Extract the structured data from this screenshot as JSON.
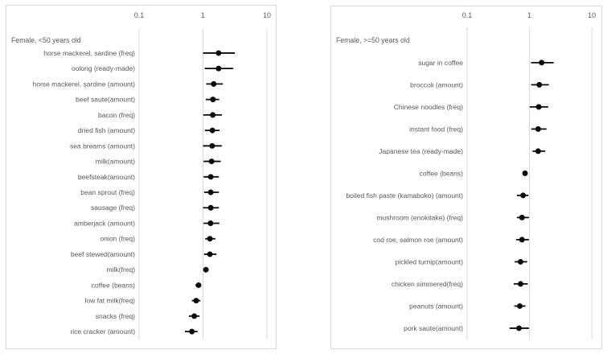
{
  "figure": {
    "background_color": "#ffffff",
    "border_color": "#d9d9d9",
    "gridline_color": "#d9d9d9",
    "text_color": "#595959",
    "marker_color": "#0a0a0a"
  },
  "chart_data": [
    {
      "type": "scatter",
      "subtype": "forest-plot",
      "title": "Female, <50 years old",
      "xscale": "log",
      "xticks": [
        "0.1",
        "1",
        "10"
      ],
      "xtick_values": [
        0.1,
        1,
        10
      ],
      "xlim": [
        0.05,
        14
      ],
      "grid": true,
      "rows": [
        {
          "label": "horse mackerel, sardine (freq)",
          "or": 1.75,
          "lo": 1.0,
          "hi": 3.15
        },
        {
          "label": "oolong (ready-made)",
          "or": 1.75,
          "lo": 1.06,
          "hi": 2.98
        },
        {
          "label": "horse mackerel, sardine (amount)",
          "or": 1.47,
          "lo": 1.12,
          "hi": 2.04
        },
        {
          "label": "beef saute(amount)",
          "or": 1.43,
          "lo": 1.1,
          "hi": 1.79
        },
        {
          "label": "bacon (freq)",
          "or": 1.42,
          "lo": 1.01,
          "hi": 1.97
        },
        {
          "label": "dried fish (amount)",
          "or": 1.4,
          "lo": 1.07,
          "hi": 1.81
        },
        {
          "label": "sea breams (amount)",
          "or": 1.39,
          "lo": 1.0,
          "hi": 1.96
        },
        {
          "label": "milk(amount)",
          "or": 1.36,
          "lo": 1.02,
          "hi": 1.89
        },
        {
          "label": "beefsteak(amount)",
          "or": 1.32,
          "lo": 1.02,
          "hi": 1.77
        },
        {
          "label": "bean sprout (freq)",
          "or": 1.32,
          "lo": 1.04,
          "hi": 1.77
        },
        {
          "label": "sausage (freq)",
          "or": 1.32,
          "lo": 1.0,
          "hi": 1.77
        },
        {
          "label": "amberjack (amount)",
          "or": 1.31,
          "lo": 1.02,
          "hi": 1.8
        },
        {
          "label": "onion (freq)",
          "or": 1.28,
          "lo": 1.08,
          "hi": 1.56
        },
        {
          "label": "beef stewed(amount)",
          "or": 1.28,
          "lo": 1.04,
          "hi": 1.62
        },
        {
          "label": "milk(freq)",
          "or": 1.11,
          "lo": 1.03,
          "hi": 1.21
        },
        {
          "label": "coffee (beans)",
          "or": 0.85,
          "lo": 0.76,
          "hi": 0.94
        },
        {
          "label": "low fat milk(freq)",
          "or": 0.78,
          "lo": 0.67,
          "hi": 0.91
        },
        {
          "label": "snacks (freq)",
          "or": 0.73,
          "lo": 0.6,
          "hi": 0.88
        },
        {
          "label": "rice cracker (amount)",
          "or": 0.67,
          "lo": 0.52,
          "hi": 0.82
        }
      ]
    },
    {
      "type": "scatter",
      "subtype": "forest-plot",
      "title": "Female, >=50 years old",
      "xscale": "log",
      "xticks": [
        "0.1",
        "1",
        "10"
      ],
      "xtick_values": [
        0.1,
        1,
        10
      ],
      "xlim": [
        0.05,
        14
      ],
      "grid": true,
      "rows": [
        {
          "label": "sugar in coffee",
          "or": 1.57,
          "lo": 1.06,
          "hi": 2.45
        },
        {
          "label": "broccoli (amount)",
          "or": 1.44,
          "lo": 1.07,
          "hi": 2.05
        },
        {
          "label": "Chinese noodles (freq)",
          "or": 1.41,
          "lo": 1.01,
          "hi": 2.0
        },
        {
          "label": "instant food (freq)",
          "or": 1.38,
          "lo": 1.07,
          "hi": 1.88
        },
        {
          "label": "Japanese tea (ready-made)",
          "or": 1.38,
          "lo": 1.12,
          "hi": 1.79
        },
        {
          "label": "coffee (beans)",
          "or": 0.85,
          "lo": 0.8,
          "hi": 0.91
        },
        {
          "label": "boiled fish paste (kamaboko) (amount)",
          "or": 0.79,
          "lo": 0.63,
          "hi": 0.96
        },
        {
          "label": "mushroom (enokitake) (freq)",
          "or": 0.76,
          "lo": 0.63,
          "hi": 0.98
        },
        {
          "label": "cod roe, salmon roe (amount)",
          "or": 0.76,
          "lo": 0.61,
          "hi": 0.98
        },
        {
          "label": "pickled turnip(amount)",
          "or": 0.72,
          "lo": 0.58,
          "hi": 0.92
        },
        {
          "label": "chicken simmered(freq)",
          "or": 0.72,
          "lo": 0.56,
          "hi": 0.94
        },
        {
          "label": "peanuts (amount)",
          "or": 0.7,
          "lo": 0.57,
          "hi": 0.86
        },
        {
          "label": "pork saute(amount)",
          "or": 0.68,
          "lo": 0.48,
          "hi": 0.98
        }
      ]
    }
  ]
}
